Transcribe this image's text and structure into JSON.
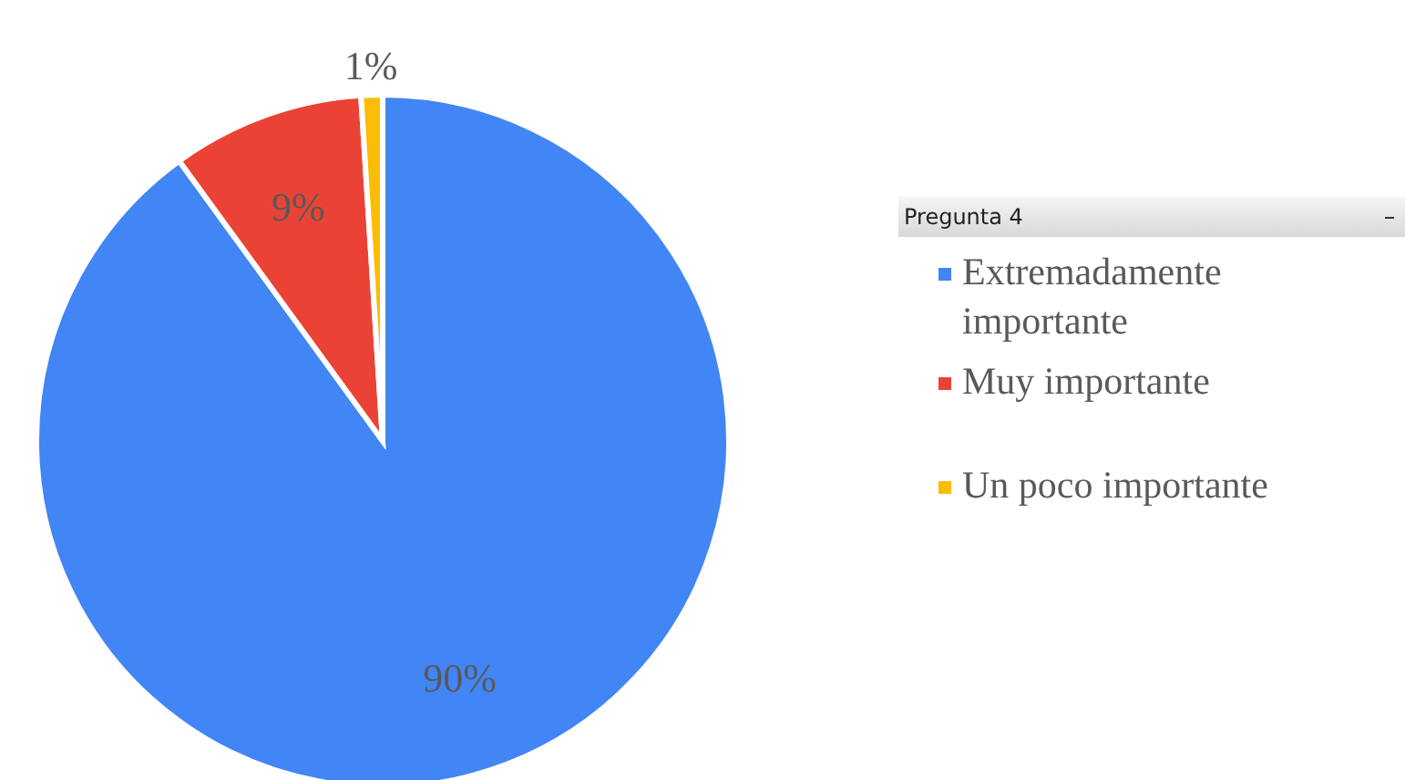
{
  "chart_data": {
    "type": "pie",
    "legend_title": "Pregunta 4",
    "legend": "right",
    "categories": [
      "Extremadamente importante",
      "Muy importante",
      "Un poco importante"
    ],
    "values": [
      90,
      9,
      1
    ],
    "value_labels": [
      "90%",
      "9%",
      "1%"
    ],
    "colors": [
      "#4285f4",
      "#ea4335",
      "#fbbc04"
    ]
  }
}
